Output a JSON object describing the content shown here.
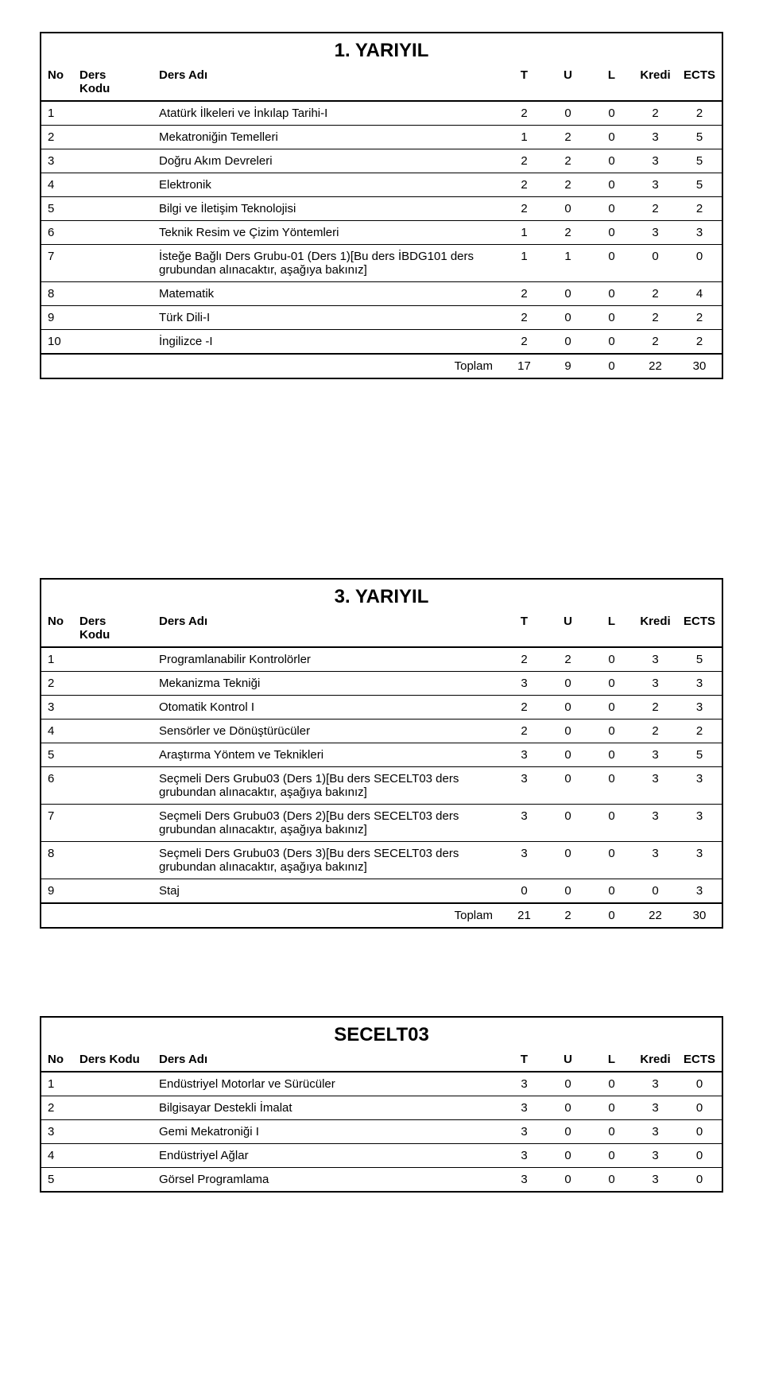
{
  "sections": [
    {
      "title": "1. YARIYIL",
      "headers": {
        "no": "No",
        "kodu": "Ders\nKodu",
        "adi": "Ders Adı",
        "t": "T",
        "u": "U",
        "l": "L",
        "kredi": "Kredi",
        "ects": "ECTS"
      },
      "rows": [
        {
          "no": "1",
          "adi": "Atatürk İlkeleri ve İnkılap Tarihi-I",
          "t": "2",
          "u": "0",
          "l": "0",
          "kredi": "2",
          "ects": "2"
        },
        {
          "no": "2",
          "adi": "Mekatroniğin Temelleri",
          "t": "1",
          "u": "2",
          "l": "0",
          "kredi": "3",
          "ects": "5"
        },
        {
          "no": "3",
          "adi": "Doğru Akım Devreleri",
          "t": "2",
          "u": "2",
          "l": "0",
          "kredi": "3",
          "ects": "5"
        },
        {
          "no": "4",
          "adi": "Elektronik",
          "t": "2",
          "u": "2",
          "l": "0",
          "kredi": "3",
          "ects": "5"
        },
        {
          "no": "5",
          "adi": "Bilgi ve İletişim Teknolojisi",
          "t": "2",
          "u": "0",
          "l": "0",
          "kredi": "2",
          "ects": "2"
        },
        {
          "no": "6",
          "adi": "Teknik Resim ve Çizim Yöntemleri",
          "t": "1",
          "u": "2",
          "l": "0",
          "kredi": "3",
          "ects": "3"
        },
        {
          "no": "7",
          "adi": "İsteğe Bağlı Ders Grubu-01 (Ders 1)[Bu ders İBDG101 ders grubundan alınacaktır, aşağıya bakınız]",
          "t": "1",
          "u": "1",
          "l": "0",
          "kredi": "0",
          "ects": "0"
        },
        {
          "no": "8",
          "adi": "Matematik",
          "t": "2",
          "u": "0",
          "l": "0",
          "kredi": "2",
          "ects": "4"
        },
        {
          "no": "9",
          "adi": "Türk Dili-I",
          "t": "2",
          "u": "0",
          "l": "0",
          "kredi": "2",
          "ects": "2"
        },
        {
          "no": "10",
          "adi": "İngilizce -I",
          "t": "2",
          "u": "0",
          "l": "0",
          "kredi": "2",
          "ects": "2"
        }
      ],
      "total": {
        "label": "Toplam",
        "t": "17",
        "u": "9",
        "l": "0",
        "kredi": "22",
        "ects": "30"
      }
    },
    {
      "title": "3. YARIYIL",
      "headers": {
        "no": "No",
        "kodu": "Ders\nKodu",
        "adi": "Ders Adı",
        "t": "T",
        "u": "U",
        "l": "L",
        "kredi": "Kredi",
        "ects": "ECTS"
      },
      "rows": [
        {
          "no": "1",
          "adi": "Programlanabilir Kontrolörler",
          "t": "2",
          "u": "2",
          "l": "0",
          "kredi": "3",
          "ects": "5"
        },
        {
          "no": "2",
          "adi": "Mekanizma Tekniği",
          "t": "3",
          "u": "0",
          "l": "0",
          "kredi": "3",
          "ects": "3"
        },
        {
          "no": "3",
          "adi": "Otomatik Kontrol I",
          "t": "2",
          "u": "0",
          "l": "0",
          "kredi": "2",
          "ects": "3"
        },
        {
          "no": "4",
          "adi": "Sensörler ve Dönüştürücüler",
          "t": "2",
          "u": "0",
          "l": "0",
          "kredi": "2",
          "ects": "2"
        },
        {
          "no": "5",
          "adi": "Araştırma Yöntem ve Teknikleri",
          "t": "3",
          "u": "0",
          "l": "0",
          "kredi": "3",
          "ects": "5"
        },
        {
          "no": "6",
          "adi": "Seçmeli Ders Grubu03 (Ders 1)[Bu ders SECELT03 ders grubundan alınacaktır, aşağıya bakınız]",
          "t": "3",
          "u": "0",
          "l": "0",
          "kredi": "3",
          "ects": "3"
        },
        {
          "no": "7",
          "adi": "Seçmeli Ders Grubu03 (Ders 2)[Bu ders SECELT03 ders grubundan alınacaktır, aşağıya bakınız]",
          "t": "3",
          "u": "0",
          "l": "0",
          "kredi": "3",
          "ects": "3"
        },
        {
          "no": "8",
          "adi": "Seçmeli Ders Grubu03 (Ders 3)[Bu ders SECELT03 ders grubundan alınacaktır, aşağıya bakınız]",
          "t": "3",
          "u": "0",
          "l": "0",
          "kredi": "3",
          "ects": "3"
        },
        {
          "no": "9",
          "adi": "Staj",
          "t": "0",
          "u": "0",
          "l": "0",
          "kredi": "0",
          "ects": "3"
        }
      ],
      "total": {
        "label": "Toplam",
        "t": "21",
        "u": "2",
        "l": "0",
        "kredi": "22",
        "ects": "30"
      }
    },
    {
      "title": "SECELT03",
      "headers": {
        "no": "No",
        "kodu": "Ders Kodu",
        "adi": "Ders Adı",
        "t": "T",
        "u": "U",
        "l": "L",
        "kredi": "Kredi",
        "ects": "ECTS"
      },
      "rows": [
        {
          "no": "1",
          "adi": "Endüstriyel Motorlar ve Sürücüler",
          "t": "3",
          "u": "0",
          "l": "0",
          "kredi": "3",
          "ects": "0"
        },
        {
          "no": "2",
          "adi": "Bilgisayar Destekli İmalat",
          "t": "3",
          "u": "0",
          "l": "0",
          "kredi": "3",
          "ects": "0"
        },
        {
          "no": "3",
          "adi": "Gemi Mekatroniği I",
          "t": "3",
          "u": "0",
          "l": "0",
          "kredi": "3",
          "ects": "0"
        },
        {
          "no": "4",
          "adi": "Endüstriyel Ağlar",
          "t": "3",
          "u": "0",
          "l": "0",
          "kredi": "3",
          "ects": "0"
        },
        {
          "no": "5",
          "adi": "Görsel Programlama",
          "t": "3",
          "u": "0",
          "l": "0",
          "kredi": "3",
          "ects": "0"
        }
      ],
      "total": null
    }
  ]
}
